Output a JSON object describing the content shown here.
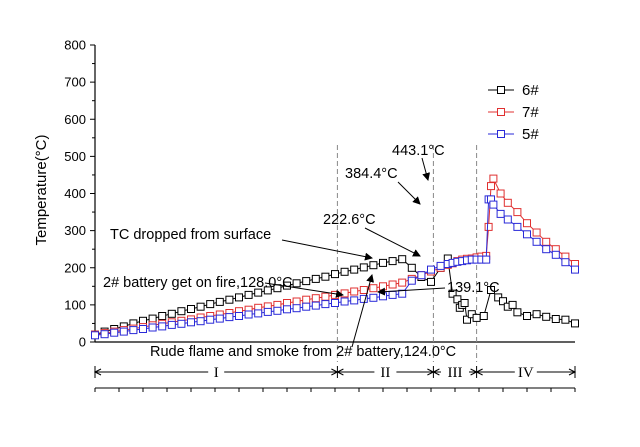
{
  "chart_data": {
    "type": "line",
    "ylabel": "Temperature(°C)",
    "ylim": [
      0,
      800
    ],
    "yticks": [
      0,
      100,
      200,
      300,
      400,
      500,
      600,
      700,
      800
    ],
    "xlim": [
      0,
      1000
    ],
    "x_tick_labels_visible": false,
    "grid": false,
    "legend_position": "top-right",
    "series": [
      {
        "name": "6#",
        "color": "#000000",
        "marker": "square-open",
        "x": [
          0,
          20,
          40,
          60,
          80,
          100,
          120,
          140,
          160,
          180,
          200,
          220,
          240,
          260,
          280,
          300,
          320,
          340,
          360,
          380,
          400,
          420,
          440,
          460,
          480,
          500,
          520,
          540,
          560,
          580,
          600,
          620,
          640,
          660,
          680,
          700,
          720,
          735,
          745,
          755,
          760,
          765,
          770,
          775,
          785,
          795,
          810,
          825,
          840,
          850,
          860,
          870,
          880,
          900,
          920,
          940,
          960,
          980,
          1000
        ],
        "y": [
          20,
          28,
          35,
          42,
          50,
          57,
          63,
          70,
          76,
          83,
          89,
          95,
          102,
          108,
          114,
          120,
          127,
          133,
          139,
          145,
          152,
          158,
          164,
          170,
          176,
          183,
          189,
          195,
          201,
          207,
          213,
          218,
          223,
          200,
          175,
          162,
          200,
          225,
          130,
          115,
          92,
          100,
          105,
          60,
          75,
          65,
          70,
          140,
          120,
          110,
          95,
          100,
          80,
          70,
          75,
          68,
          62,
          60,
          50
        ]
      },
      {
        "name": "7#",
        "color": "#e03030",
        "marker": "square-open",
        "x": [
          0,
          20,
          40,
          60,
          80,
          100,
          120,
          140,
          160,
          180,
          200,
          220,
          240,
          260,
          280,
          300,
          320,
          340,
          360,
          380,
          400,
          420,
          440,
          460,
          480,
          500,
          520,
          540,
          560,
          580,
          600,
          620,
          640,
          660,
          680,
          700,
          720,
          735,
          745,
          755,
          765,
          775,
          785,
          795,
          805,
          815,
          820,
          825,
          830,
          845,
          860,
          880,
          900,
          920,
          940,
          960,
          980,
          1000
        ],
        "y": [
          20,
          24,
          28,
          32,
          36,
          40,
          45,
          49,
          53,
          57,
          61,
          66,
          70,
          74,
          78,
          83,
          87,
          92,
          96,
          100,
          105,
          109,
          114,
          118,
          122,
          127,
          131,
          136,
          140,
          145,
          150,
          155,
          160,
          170,
          180,
          190,
          200,
          208,
          212,
          218,
          222,
          224,
          225,
          228,
          230,
          232,
          310,
          420,
          440,
          400,
          375,
          350,
          320,
          295,
          270,
          250,
          230,
          210
        ]
      },
      {
        "name": "5#",
        "color": "#2a2ad8",
        "marker": "square-open",
        "x": [
          0,
          20,
          40,
          60,
          80,
          100,
          120,
          140,
          160,
          180,
          200,
          220,
          240,
          260,
          280,
          300,
          320,
          340,
          360,
          380,
          400,
          420,
          440,
          460,
          480,
          500,
          520,
          540,
          560,
          580,
          600,
          620,
          640,
          660,
          680,
          700,
          720,
          735,
          745,
          755,
          765,
          775,
          785,
          795,
          805,
          815,
          820,
          825,
          830,
          845,
          860,
          880,
          900,
          920,
          940,
          960,
          980,
          1000
        ],
        "y": [
          18,
          21,
          25,
          28,
          32,
          35,
          39,
          42,
          46,
          49,
          53,
          56,
          60,
          63,
          67,
          70,
          74,
          77,
          81,
          84,
          88,
          91,
          95,
          98,
          102,
          105,
          109,
          112,
          116,
          119,
          123,
          127,
          130,
          165,
          180,
          195,
          205,
          210,
          213,
          216,
          218,
          220,
          222,
          222,
          222,
          222,
          384,
          384,
          370,
          345,
          330,
          310,
          290,
          270,
          250,
          235,
          215,
          195
        ]
      }
    ],
    "stage_dividers_x": [
      505,
      705,
      795
    ],
    "stages": [
      {
        "label": "I",
        "x_from": 0,
        "x_to": 505
      },
      {
        "label": "II",
        "x_from": 505,
        "x_to": 705
      },
      {
        "label": "III",
        "x_from": 705,
        "x_to": 795
      },
      {
        "label": "IV",
        "x_from": 795,
        "x_to": 1000
      }
    ],
    "annotations": {
      "tc_dropped": "TC dropped from surface",
      "battery_fire": "2# battery get on fire,128.0°C",
      "rude_flame": "Rude flame and smoke from 2# battery,124.0°C",
      "t_222": "222.6°C",
      "t_384": "384.4°C",
      "t_443": "443.1°C",
      "t_139": "139.1°C"
    }
  }
}
